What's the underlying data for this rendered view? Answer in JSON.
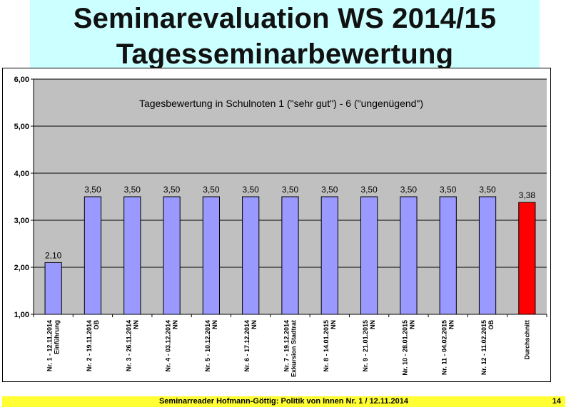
{
  "header": {
    "title_line_1": "Seminarevaluation WS 2014/15",
    "title_line_2": "Tagesseminarbewertung"
  },
  "footer": {
    "text": "Seminarreader Hofmann-Göttig: Politik von Innen Nr. 1 / 12.11.2014",
    "page_number": "14"
  },
  "chart_data": {
    "type": "bar",
    "title": "Tagesbewertung in Schulnoten 1 (\"sehr gut\") - 6 (\"ungenügend\")",
    "xlabel": "",
    "ylabel": "",
    "ylim": [
      1,
      6
    ],
    "yticks": [
      "1,00",
      "2,00",
      "3,00",
      "4,00",
      "5,00",
      "6,00"
    ],
    "grid": true,
    "categories": [
      [
        "Nr. 1 - 12.11.2014",
        "Einführung"
      ],
      [
        "Nr. 2 - 19.11.2014",
        "OB"
      ],
      [
        "Nr. 3 - 26.11.2014",
        "NN"
      ],
      [
        "Nr. 4 - 03.12.2014",
        "NN"
      ],
      [
        "Nr. 5 - 10.12.2014",
        "NN"
      ],
      [
        "Nr. 6 - 17.12.2014",
        "NN"
      ],
      [
        "Nr. 7 - 19.12.2014",
        "Exkursion Stadtrat"
      ],
      [
        "Nr. 8 - 14.01.2015",
        "NN"
      ],
      [
        "Nr. 9 - 21.01.2015",
        "NN"
      ],
      [
        "Nr. 10 - 28.01.2015",
        "NN"
      ],
      [
        "Nr. 11 - 04.02.2015",
        "NN"
      ],
      [
        "Nr. 12 - 11.02.2015",
        "OB"
      ],
      [
        "Durchschnitt"
      ]
    ],
    "values": [
      2.1,
      3.5,
      3.5,
      3.5,
      3.5,
      3.5,
      3.5,
      3.5,
      3.5,
      3.5,
      3.5,
      3.5,
      3.38
    ],
    "data_labels": [
      "2,10",
      "3,50",
      "3,50",
      "3,50",
      "3,50",
      "3,50",
      "3,50",
      "3,50",
      "3,50",
      "3,50",
      "3,50",
      "3,50",
      "3,38"
    ],
    "colors": {
      "bar": "#9999ff",
      "highlight_bar": "#ff0000",
      "plot_background": "#c0c0c0",
      "grid": "#000000"
    },
    "highlight_index": 12
  }
}
